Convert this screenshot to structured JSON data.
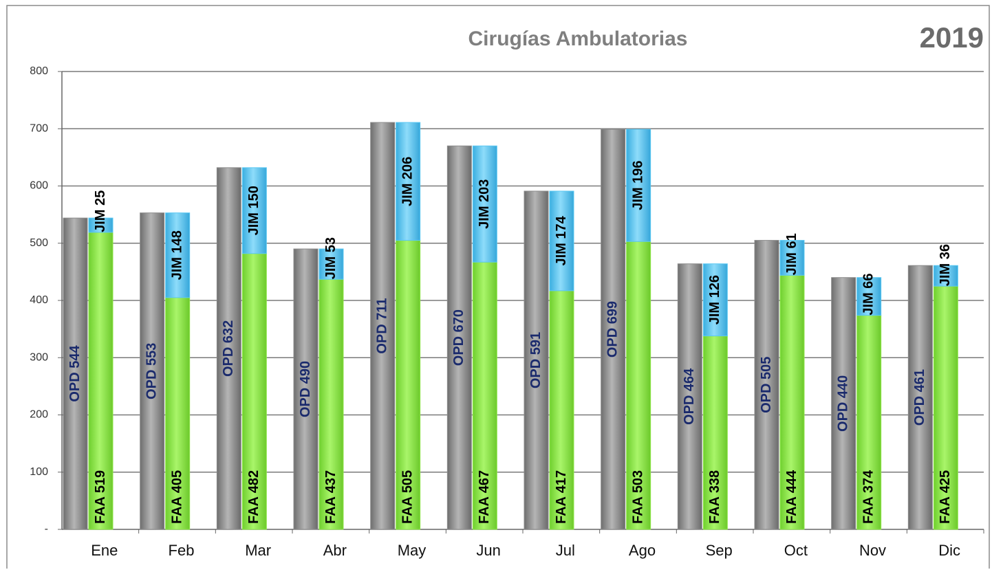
{
  "chart_data": {
    "type": "bar",
    "title": "Cirugías Ambulatorias",
    "subtitle": "2019",
    "categories": [
      "Ene",
      "Feb",
      "Mar",
      "Abr",
      "May",
      "Jun",
      "Jul",
      "Ago",
      "Sep",
      "Oct",
      "Nov",
      "Dic"
    ],
    "series": [
      {
        "color": "#8c8c8c",
        "stack": "a",
        "values": [
          544,
          553,
          632,
          490,
          711,
          670,
          591,
          699,
          464,
          505,
          440,
          461
        ],
        "value_labels": [
          "OPD 544",
          "OPD 553",
          "OPD 632",
          "OPD 490",
          "OPD 711",
          "OPD 670",
          "OPD 591",
          "OPD 699",
          "OPD 464",
          "OPD 505",
          "OPD 440",
          "OPD 461"
        ]
      },
      {
        "color": "#8fe64a",
        "stack": "b",
        "values": [
          519,
          405,
          482,
          437,
          505,
          467,
          417,
          503,
          338,
          444,
          374,
          425
        ],
        "value_labels": [
          "FAA 519",
          "FAA 405",
          "FAA 482",
          "FAA 437",
          "FAA 505",
          "FAA 467",
          "FAA 417",
          "FAA 503",
          "FAA 338",
          "FAA 444",
          "FAA 374",
          "FAA 425"
        ]
      },
      {
        "color": "#5bc8f2",
        "stack": "b",
        "values": [
          25,
          148,
          150,
          53,
          206,
          203,
          174,
          196,
          126,
          61,
          66,
          36
        ],
        "value_labels": [
          "JIM 25",
          "JIM 148",
          "JIM 150",
          "JIM 53",
          "JIM 206",
          "JIM 203",
          "JIM 174",
          "JIM 196",
          "JIM 126",
          "JIM 61",
          "JIM 66",
          "JIM 36"
        ]
      }
    ],
    "ylim": [
      0,
      800
    ],
    "yticks": [
      {
        "value": 0,
        "label": "-"
      },
      100,
      200,
      300,
      400,
      500,
      600,
      700,
      800
    ],
    "grid": true
  }
}
